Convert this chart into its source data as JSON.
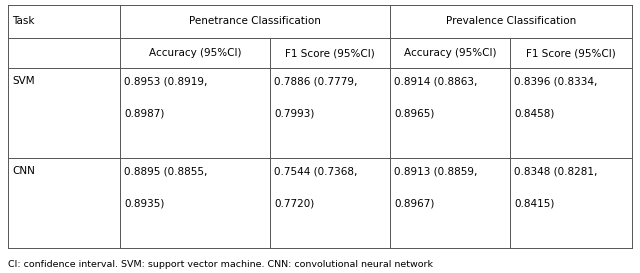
{
  "footnote": "CI: confidence interval. SVM: support vector machine. CNN: convolutional neural network",
  "col_headers_row1": [
    "Task",
    "Penetrance Classification",
    "Prevalence Classification"
  ],
  "col_headers_row2": [
    "Accuracy (95%CI)",
    "F1 Score (95%CI)",
    "Accuracy (95%CI)",
    "F1 Score (95%CI)"
  ],
  "rows": [
    {
      "label": "SVM",
      "values": [
        "0.8953 (0.8919,\n\n0.8987)",
        "0.7886 (0.7779,\n\n0.7993)",
        "0.8914 (0.8863,\n\n0.8965)",
        "0.8396 (0.8334,\n\n0.8458)"
      ]
    },
    {
      "label": "CNN",
      "values": [
        "0.8895 (0.8855,\n\n0.8935)",
        "0.7544 (0.7368,\n\n0.7720)",
        "0.8913 (0.8859,\n\n0.8967)",
        "0.8348 (0.8281,\n\n0.8415)"
      ]
    }
  ],
  "background_color": "#ffffff",
  "line_color": "#555555",
  "text_color": "#000000",
  "font_size": 7.5,
  "footnote_font_size": 6.8
}
